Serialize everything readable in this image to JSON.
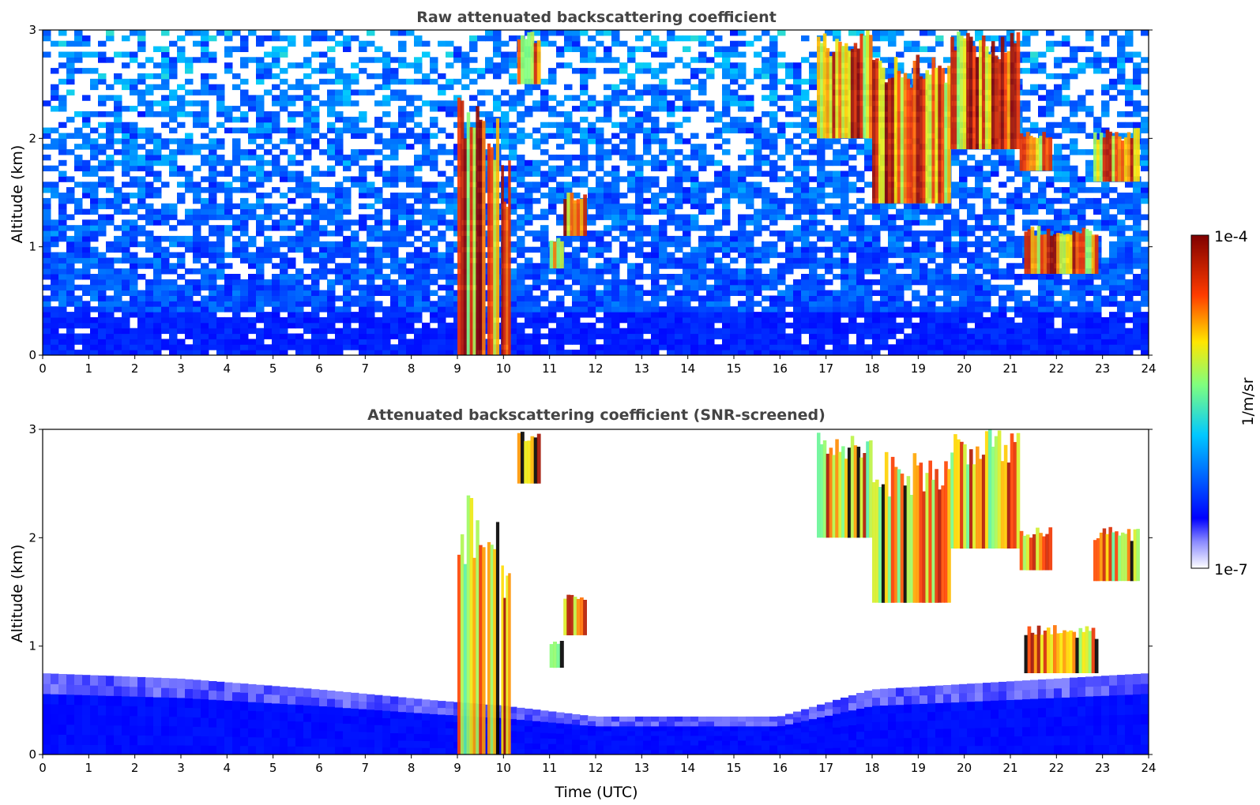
{
  "chart_data": [
    {
      "type": "heatmap",
      "title": "Raw attenuated backscattering coefficient",
      "xlabel": "",
      "ylabel": "Altitude (km)",
      "xlim": [
        0,
        24
      ],
      "ylim": [
        0,
        3
      ],
      "xticks": [
        "0",
        "1",
        "2",
        "3",
        "4",
        "5",
        "6",
        "7",
        "8",
        "9",
        "10",
        "11",
        "12",
        "13",
        "14",
        "15",
        "16",
        "17",
        "18",
        "19",
        "20",
        "21",
        "22",
        "23",
        "24"
      ],
      "yticks": [
        "0",
        "1",
        "2",
        "3"
      ],
      "screened": false,
      "cloud_features": [
        {
          "time_start": 9.0,
          "time_end": 9.6,
          "alt_bottom": 0.0,
          "alt_top": 2.4
        },
        {
          "time_start": 9.65,
          "time_end": 9.9,
          "alt_bottom": 0.0,
          "alt_top": 2.2
        },
        {
          "time_start": 9.95,
          "time_end": 10.15,
          "alt_bottom": 0.0,
          "alt_top": 1.8
        },
        {
          "time_start": 10.3,
          "time_end": 10.8,
          "alt_bottom": 2.5,
          "alt_top": 3.0
        },
        {
          "time_start": 11.0,
          "time_end": 11.3,
          "alt_bottom": 0.8,
          "alt_top": 1.1
        },
        {
          "time_start": 11.3,
          "time_end": 11.8,
          "alt_bottom": 1.1,
          "alt_top": 1.5
        },
        {
          "time_start": 16.8,
          "time_end": 18.0,
          "alt_bottom": 2.0,
          "alt_top": 3.0
        },
        {
          "time_start": 18.0,
          "time_end": 19.7,
          "alt_bottom": 1.4,
          "alt_top": 2.8
        },
        {
          "time_start": 19.7,
          "time_end": 21.2,
          "alt_bottom": 1.9,
          "alt_top": 3.0
        },
        {
          "time_start": 21.2,
          "time_end": 21.9,
          "alt_bottom": 1.7,
          "alt_top": 2.1
        },
        {
          "time_start": 21.3,
          "time_end": 22.9,
          "alt_bottom": 0.75,
          "alt_top": 1.2
        },
        {
          "time_start": 22.8,
          "time_end": 23.8,
          "alt_bottom": 1.6,
          "alt_top": 2.1
        }
      ]
    },
    {
      "type": "heatmap",
      "title": "Attenuated backscattering coefficient (SNR-screened)",
      "xlabel": "Time (UTC)",
      "ylabel": "Altitude (km)",
      "xlim": [
        0,
        24
      ],
      "ylim": [
        0,
        3
      ],
      "xticks": [
        "0",
        "1",
        "2",
        "3",
        "4",
        "5",
        "6",
        "7",
        "8",
        "9",
        "10",
        "11",
        "12",
        "13",
        "14",
        "15",
        "16",
        "17",
        "18",
        "19",
        "20",
        "21",
        "22",
        "23",
        "24"
      ],
      "yticks": [
        "0",
        "1",
        "2",
        "3"
      ],
      "screened": true,
      "boundary_layer_top": [
        {
          "time": 0,
          "alt": 0.75
        },
        {
          "time": 3,
          "alt": 0.7
        },
        {
          "time": 6,
          "alt": 0.6
        },
        {
          "time": 8.5,
          "alt": 0.5
        },
        {
          "time": 10,
          "alt": 0.45
        },
        {
          "time": 12,
          "alt": 0.35
        },
        {
          "time": 14,
          "alt": 0.35
        },
        {
          "time": 16,
          "alt": 0.35
        },
        {
          "time": 18,
          "alt": 0.6
        },
        {
          "time": 24,
          "alt": 0.75
        }
      ]
    }
  ],
  "colorbar": {
    "label": "1/m/sr",
    "max_label": "1e-4",
    "min_label": "1e-7",
    "scale": "log",
    "range": [
      1e-07,
      0.0001
    ],
    "colormap": [
      "#ffffff",
      "#0000ff",
      "#00c8ff",
      "#7fff7f",
      "#ffe600",
      "#ff3c00",
      "#7f0000"
    ]
  }
}
